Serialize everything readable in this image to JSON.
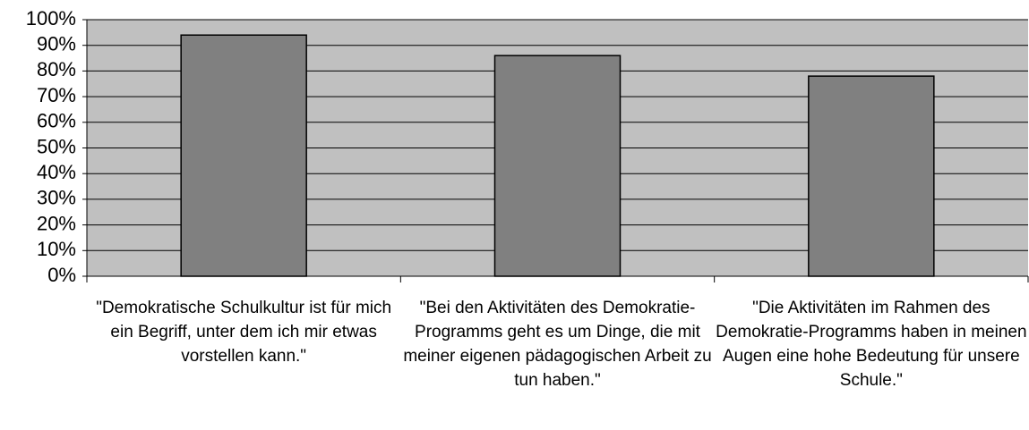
{
  "chart_data": {
    "type": "bar",
    "categories": [
      "\"Demokratische Schulkultur ist für mich ein Begriff, unter dem ich mir etwas vorstellen kann.\"",
      "\"Bei den Aktivitäten des Demokratie-Programms geht es um Dinge, die mit meiner eigenen pädagogischen Arbeit zu tun haben.\"",
      "\"Die Aktivitäten im Rahmen des Demokratie-Programms haben in meinen Augen eine hohe Bedeutung für unsere Schule.\""
    ],
    "values": [
      94,
      86,
      78
    ],
    "color": "#808080",
    "background": "#c0c0c0",
    "ylim": [
      0,
      100
    ],
    "yticks": [
      {
        "value": 0,
        "label": "0%"
      },
      {
        "value": 10,
        "label": "10%"
      },
      {
        "value": 20,
        "label": "20%"
      },
      {
        "value": 30,
        "label": "30%"
      },
      {
        "value": 40,
        "label": "40%"
      },
      {
        "value": 50,
        "label": "50%"
      },
      {
        "value": 60,
        "label": "60%"
      },
      {
        "value": 70,
        "label": "70%"
      },
      {
        "value": 80,
        "label": "80%"
      },
      {
        "value": 90,
        "label": "90%"
      },
      {
        "value": 100,
        "label": "100%"
      }
    ],
    "grid": true
  }
}
